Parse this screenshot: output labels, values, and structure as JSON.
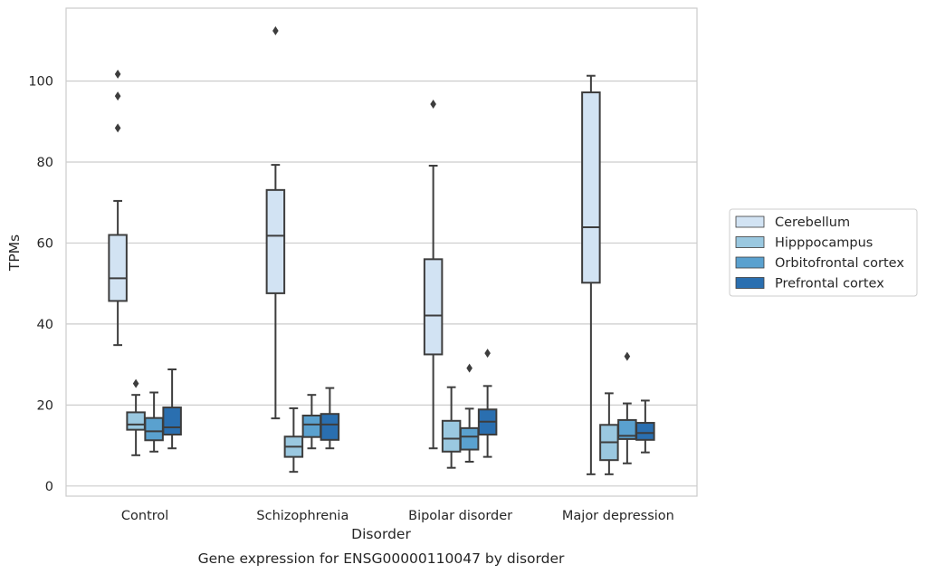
{
  "chart_data": {
    "type": "box",
    "xlabel": "Disorder",
    "ylabel": "TPMs",
    "caption": "Gene expression for ENSG00000110047 by disorder",
    "ylim": [
      -2.5,
      118
    ],
    "yticks": [
      0,
      20,
      40,
      60,
      80,
      100
    ],
    "grid": "horizontal",
    "legend_position": "right",
    "categories": [
      "Control",
      "Schizophrenia",
      "Bipolar disorder",
      "Major depression"
    ],
    "series": [
      {
        "name": "Cerebellum",
        "color": "#d2e3f3",
        "boxes": [
          {
            "whisker_low": 34.8,
            "q1": 45.7,
            "median": 51.3,
            "q3": 62.0,
            "whisker_high": 70.4,
            "outliers": [
              88.4,
              96.3,
              101.7
            ]
          },
          {
            "whisker_low": 16.7,
            "q1": 47.6,
            "median": 61.8,
            "q3": 73.1,
            "whisker_high": 79.3,
            "outliers": [
              112.4
            ]
          },
          {
            "whisker_low": 9.3,
            "q1": 32.5,
            "median": 42.1,
            "q3": 56.0,
            "whisker_high": 79.1,
            "outliers": [
              94.3
            ]
          },
          {
            "whisker_low": 2.9,
            "q1": 50.2,
            "median": 63.9,
            "q3": 97.2,
            "whisker_high": 101.3,
            "outliers": []
          }
        ]
      },
      {
        "name": "Hipppocampus",
        "color": "#9ac8e0",
        "boxes": [
          {
            "whisker_low": 7.6,
            "q1": 13.9,
            "median": 15.2,
            "q3": 18.2,
            "whisker_high": 22.5,
            "outliers": [
              25.3
            ]
          },
          {
            "whisker_low": 3.5,
            "q1": 7.2,
            "median": 9.7,
            "q3": 12.2,
            "whisker_high": 19.2,
            "outliers": []
          },
          {
            "whisker_low": 4.5,
            "q1": 8.5,
            "median": 11.7,
            "q3": 16.1,
            "whisker_high": 24.4,
            "outliers": []
          },
          {
            "whisker_low": 2.9,
            "q1": 6.4,
            "median": 10.8,
            "q3": 15.1,
            "whisker_high": 22.9,
            "outliers": []
          }
        ]
      },
      {
        "name": "Orbitofrontal cortex",
        "color": "#5aa1cf",
        "boxes": [
          {
            "whisker_low": 8.5,
            "q1": 11.3,
            "median": 13.5,
            "q3": 16.8,
            "whisker_high": 23.1,
            "outliers": []
          },
          {
            "whisker_low": 9.3,
            "q1": 12.1,
            "median": 15.2,
            "q3": 17.4,
            "whisker_high": 22.5,
            "outliers": []
          },
          {
            "whisker_low": 6.0,
            "q1": 9.0,
            "median": 12.2,
            "q3": 14.3,
            "whisker_high": 19.1,
            "outliers": [
              29.1
            ]
          },
          {
            "whisker_low": 5.6,
            "q1": 11.6,
            "median": 12.4,
            "q3": 16.3,
            "whisker_high": 20.4,
            "outliers": [
              32.0
            ]
          }
        ]
      },
      {
        "name": "Prefrontal cortex",
        "color": "#2a6fb0",
        "boxes": [
          {
            "whisker_low": 9.3,
            "q1": 12.7,
            "median": 14.5,
            "q3": 19.4,
            "whisker_high": 28.8,
            "outliers": []
          },
          {
            "whisker_low": 9.3,
            "q1": 11.4,
            "median": 15.2,
            "q3": 17.8,
            "whisker_high": 24.2,
            "outliers": []
          },
          {
            "whisker_low": 7.2,
            "q1": 12.7,
            "median": 15.9,
            "q3": 18.9,
            "whisker_high": 24.7,
            "outliers": [
              32.8
            ]
          },
          {
            "whisker_low": 8.3,
            "q1": 11.4,
            "median": 13.1,
            "q3": 15.6,
            "whisker_high": 21.1,
            "outliers": []
          }
        ]
      }
    ]
  }
}
